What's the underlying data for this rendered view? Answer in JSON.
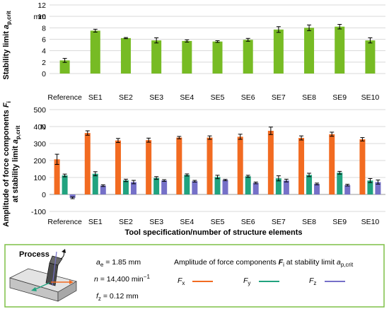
{
  "colors": {
    "top_bar": "#77bb24",
    "fx": "#f26b21",
    "fy": "#21a37f",
    "fz": "#7570c8",
    "box_border": "#7ec147",
    "grid": "#d9d9d9"
  },
  "chart_data": [
    {
      "type": "bar",
      "categories": [
        "Reference",
        "SE1",
        "SE2",
        "SE3",
        "SE4",
        "SE5",
        "SE6",
        "SE7",
        "SE8",
        "SE9",
        "SE10"
      ],
      "series": [
        {
          "values": [
            2.3,
            7.5,
            6.2,
            5.8,
            5.7,
            5.6,
            5.9,
            7.7,
            8.0,
            8.2,
            5.8
          ],
          "errors": [
            0.35,
            0.25,
            0.1,
            0.45,
            0.2,
            0.15,
            0.25,
            0.5,
            0.5,
            0.4,
            0.45
          ]
        }
      ],
      "ylabel_main": "Stability limit ",
      "ylabel_italic": "a",
      "ylabel_sub": "p,crit",
      "unit": "mm",
      "yticks": [
        "0",
        "2",
        "4",
        "6",
        "8",
        "10",
        "12"
      ],
      "ylim": [
        0,
        12
      ],
      "grid": true
    },
    {
      "type": "bar",
      "categories": [
        "Reference",
        "SE1",
        "SE2",
        "SE3",
        "SE4",
        "SE5",
        "SE6",
        "SE7",
        "SE8",
        "SE9",
        "SE10"
      ],
      "series": [
        {
          "name": "F_x",
          "values": [
            207,
            362,
            318,
            320,
            335,
            335,
            340,
            375,
            333,
            355,
            325
          ],
          "errors": [
            30,
            13,
            12,
            12,
            7,
            10,
            15,
            22,
            12,
            12,
            10
          ]
        },
        {
          "name": "F_y",
          "values": [
            112,
            122,
            83,
            97,
            115,
            103,
            107,
            95,
            115,
            128,
            82
          ],
          "errors": [
            8,
            12,
            7,
            8,
            6,
            10,
            6,
            15,
            10,
            8,
            12
          ]
        },
        {
          "name": "F_z",
          "values": [
            -20,
            52,
            73,
            82,
            78,
            85,
            68,
            82,
            62,
            55,
            73
          ],
          "errors": [
            5,
            5,
            10,
            5,
            5,
            4,
            5,
            8,
            5,
            5,
            12
          ]
        }
      ],
      "ylabel_line1_main": "Amplitude of force components ",
      "ylabel_line1_italic": "F",
      "ylabel_line1_sub": "i",
      "ylabel_line2_main": "at stability limit ",
      "ylabel_line2_italic": "a",
      "ylabel_line2_sub": "p,crit",
      "unit": "N",
      "yticks": [
        "-100",
        "0",
        "100",
        "200",
        "300",
        "400",
        "500"
      ],
      "ylim": [
        -100,
        500
      ],
      "xlabel": "Tool specification/number of structure elements",
      "grid": true
    }
  ],
  "process": {
    "title": "Process",
    "ae_sym": "a",
    "ae_sub": "e",
    "ae_val": " = 1.85 mm",
    "n_sym": "n",
    "n_val": " = 14,400 min",
    "n_exp": "−1",
    "fz_sym": "f",
    "fz_sub": "z",
    "fz_val": " = 0.12 mm"
  },
  "legend": {
    "title_main": "Amplitude of force components ",
    "title_italic": "F",
    "title_sub": "i",
    "title_mid": " at stability limit ",
    "title_italic2": "a",
    "title_sub2": "p,crit",
    "items": [
      {
        "sym": "F",
        "sub": "x"
      },
      {
        "sym": "F",
        "sub": "y"
      },
      {
        "sym": "F",
        "sub": "z"
      }
    ]
  }
}
